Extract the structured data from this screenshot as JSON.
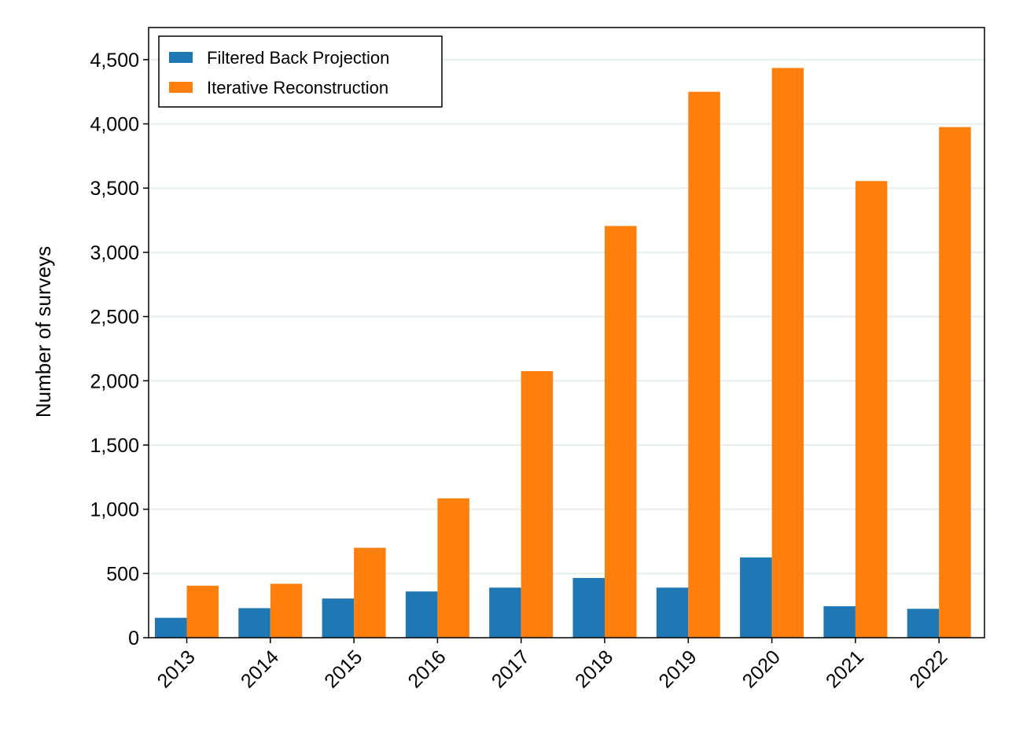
{
  "chart_data": {
    "type": "bar",
    "title": "",
    "xlabel": "",
    "ylabel": "Number of surveys",
    "categories": [
      "2013",
      "2014",
      "2015",
      "2016",
      "2017",
      "2018",
      "2019",
      "2020",
      "2021",
      "2022"
    ],
    "series": [
      {
        "name": "Filtered Back Projection",
        "color": "#1f77b4",
        "values": [
          155,
          230,
          305,
          360,
          390,
          465,
          390,
          625,
          245,
          225
        ]
      },
      {
        "name": "Iterative Reconstruction",
        "color": "#ff7f0e",
        "values": [
          405,
          420,
          700,
          1085,
          2075,
          3205,
          4250,
          4435,
          3555,
          3975
        ]
      }
    ],
    "ylim": [
      0,
      4750
    ],
    "yticks": [
      0,
      500,
      1000,
      1500,
      2000,
      2500,
      3000,
      3500,
      4000,
      4500
    ],
    "ytick_labels": [
      "0",
      "500",
      "1,000",
      "1,500",
      "2,000",
      "2,500",
      "3,000",
      "3,500",
      "4,000",
      "4,500"
    ],
    "grid": "horizontal",
    "legend_position": "top-left"
  }
}
